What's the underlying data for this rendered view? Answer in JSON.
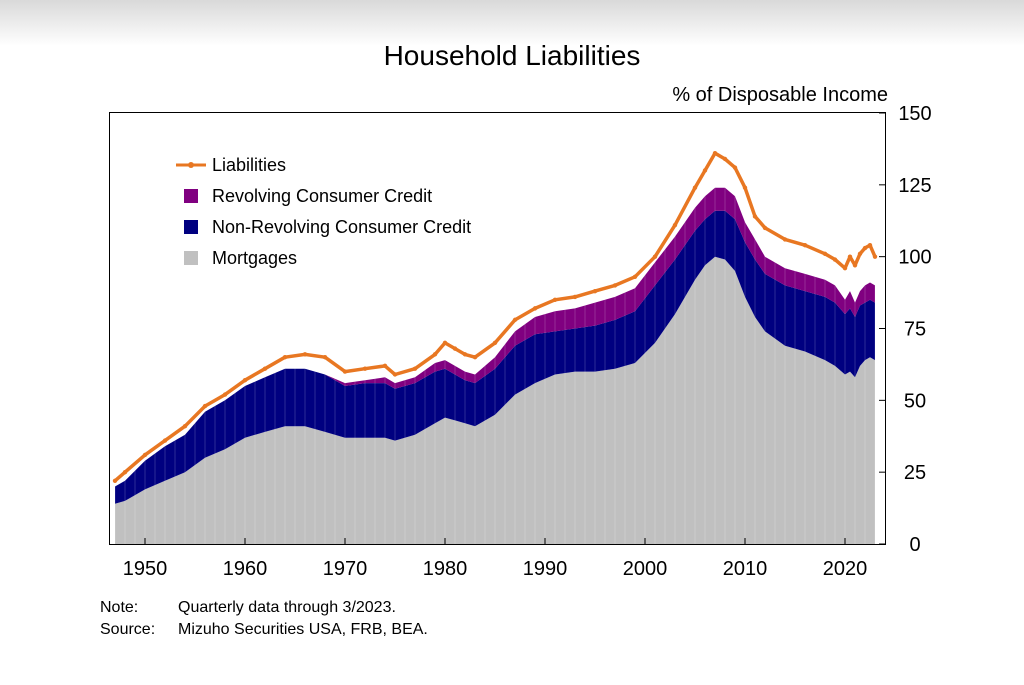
{
  "chart_data": {
    "type": "area",
    "title": "Household Liabilities",
    "ylabel": "% of Disposable Income",
    "xlim": [
      1946.5,
      2024
    ],
    "ylim": [
      0,
      150
    ],
    "x_ticks": [
      "1950",
      "1960",
      "1970",
      "1980",
      "1990",
      "2000",
      "2010",
      "2020"
    ],
    "y_ticks": [
      "150",
      "125",
      "100",
      "75",
      "50",
      "25",
      "0"
    ],
    "y_axis_side": "right",
    "grid": false,
    "legend_position": "top-left",
    "x": [
      1947,
      1948,
      1950,
      1952,
      1954,
      1956,
      1958,
      1960,
      1962,
      1964,
      1966,
      1968,
      1970,
      1972,
      1974,
      1975,
      1977,
      1979,
      1980,
      1981,
      1982,
      1983,
      1985,
      1987,
      1989,
      1991,
      1993,
      1995,
      1997,
      1999,
      2001,
      2003,
      2005,
      2006,
      2007,
      2008,
      2009,
      2010,
      2011,
      2012,
      2014,
      2016,
      2018,
      2019,
      2020,
      2020.5,
      2021,
      2021.5,
      2022,
      2022.5,
      2023
    ],
    "series": [
      {
        "name": "Mortgages",
        "color": "#c0c0c0",
        "values": [
          14,
          15,
          19,
          22,
          25,
          30,
          33,
          37,
          39,
          41,
          41,
          39,
          37,
          37,
          37,
          36,
          38,
          42,
          44,
          43,
          42,
          41,
          45,
          52,
          56,
          59,
          60,
          60,
          61,
          63,
          70,
          80,
          92,
          97,
          100,
          99,
          95,
          86,
          79,
          74,
          69,
          67,
          64,
          62,
          59,
          60,
          58,
          62,
          64,
          65,
          64
        ]
      },
      {
        "name": "Non-Revolving Consumer Credit",
        "color": "#000080",
        "values": [
          6,
          7,
          10,
          12,
          13,
          16,
          17,
          18,
          19,
          20,
          20,
          20,
          18,
          19,
          19,
          18,
          18,
          18,
          17,
          16,
          15,
          15,
          16,
          17,
          17,
          15,
          15,
          16,
          17,
          18,
          20,
          19,
          17,
          16,
          16,
          17,
          18,
          19,
          20,
          20,
          21,
          21,
          22,
          22,
          21,
          22,
          21,
          21,
          20,
          20,
          20
        ]
      },
      {
        "name": "Revolving Consumer Credit",
        "color": "#800080",
        "values": [
          0,
          0,
          0,
          0,
          0,
          0,
          0,
          0,
          0,
          0,
          0,
          0,
          1,
          1,
          2,
          2,
          2,
          3,
          3,
          3,
          3,
          3,
          4,
          5,
          6,
          7,
          7,
          8,
          8,
          8,
          8,
          8,
          8,
          8,
          8,
          8,
          8,
          7,
          7,
          6,
          6,
          6,
          6,
          6,
          5,
          6,
          5,
          5,
          6,
          6,
          6
        ]
      },
      {
        "name": "Liabilities",
        "color": "#e87722",
        "values": [
          22,
          25,
          31,
          36,
          41,
          48,
          52,
          57,
          61,
          65,
          66,
          65,
          60,
          61,
          62,
          59,
          61,
          66,
          70,
          68,
          66,
          65,
          70,
          78,
          82,
          85,
          86,
          88,
          90,
          93,
          100,
          111,
          124,
          130,
          136,
          134,
          131,
          124,
          114,
          110,
          106,
          104,
          101,
          99,
          96,
          100,
          97,
          101,
          103,
          104,
          100
        ]
      }
    ]
  },
  "notes": [
    {
      "label": "Note:",
      "text": "Quarterly data through 3/2023."
    },
    {
      "label": "Source:",
      "text": "Mizuho Securities USA, FRB, BEA."
    }
  ]
}
